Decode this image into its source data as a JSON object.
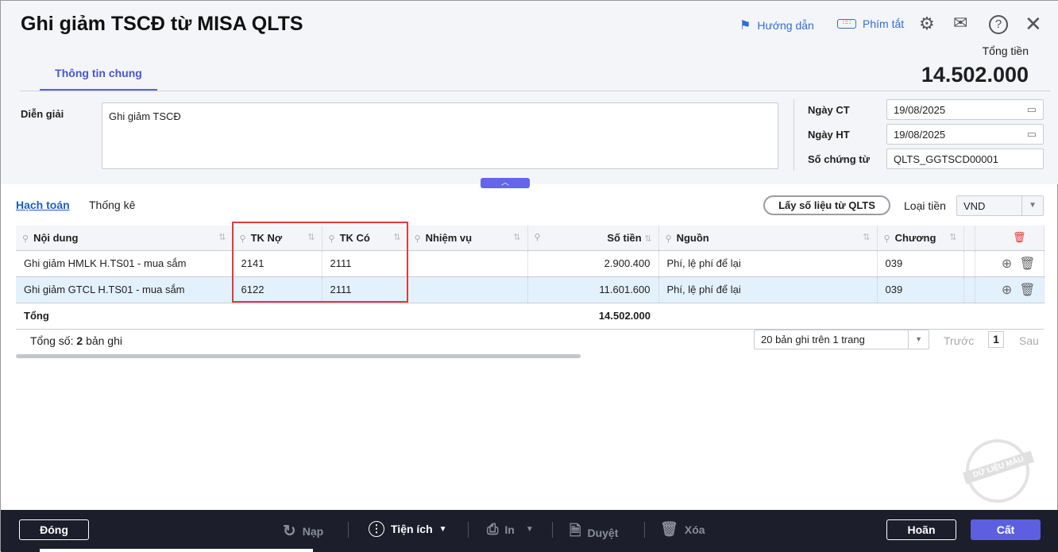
{
  "header": {
    "title": "Ghi giảm TSCĐ từ MISA QLTS",
    "guide": "Hướng dẫn",
    "shortcuts": "Phím tắt",
    "total_label": "Tổng tiền",
    "total_value": "14.502.000"
  },
  "tabs": [
    {
      "label": "Thông tin chung"
    }
  ],
  "form": {
    "description_label": "Diễn giải",
    "description_value": "Ghi giảm TSCĐ",
    "date_ct_label": "Ngày CT",
    "date_ct": "19/08/2025",
    "date_ht_label": "Ngày HT",
    "date_ht": "19/08/2025",
    "voucher_label": "Số chứng từ",
    "voucher": "QLTS_GGTSCD00001"
  },
  "subtabs": {
    "accounting": "Hạch toán",
    "stats": "Thống kê",
    "fetch_button": "Lấy số liệu từ QLTS",
    "currency_label": "Loại tiền",
    "currency": "VND"
  },
  "table": {
    "columns": [
      "Nội dung",
      "TK Nợ",
      "TK Có",
      "Nhiệm vụ",
      "Số tiền",
      "Nguồn",
      "Chương"
    ],
    "rows": [
      {
        "content": "Ghi giảm HMLK H.TS01 - mua sắm",
        "debit": "2141",
        "credit": "2111",
        "task": "",
        "amount": "2.900.400",
        "source": "Phí, lệ phí để lại",
        "chapter": "039"
      },
      {
        "content": "Ghi giảm GTCL H.TS01 - mua sắm",
        "debit": "6122",
        "credit": "2111",
        "task": "",
        "amount": "11.601.600",
        "source": "Phí, lệ phí để lại",
        "chapter": "039"
      }
    ],
    "total_label": "Tổng",
    "total_amount": "14.502.000"
  },
  "pager": {
    "count_prefix": "Tổng số:",
    "count": "2",
    "count_suffix": "bản ghi",
    "page_size": "20 bản ghi trên 1 trang",
    "prev": "Trước",
    "page": "1",
    "next": "Sau"
  },
  "watermark": "DỮ LIỆU MẪU",
  "footer": {
    "close": "Đóng",
    "reload": "Nạp",
    "utilities": "Tiện ích",
    "print": "In",
    "approve": "Duyệt",
    "delete": "Xóa",
    "postpone": "Hoãn",
    "save": "Cất"
  },
  "colors": {
    "accent": "#5b5fe0",
    "highlight": "#e53935",
    "footer_bg": "#1c1e2c",
    "selected_row": "#e3f1fd"
  }
}
